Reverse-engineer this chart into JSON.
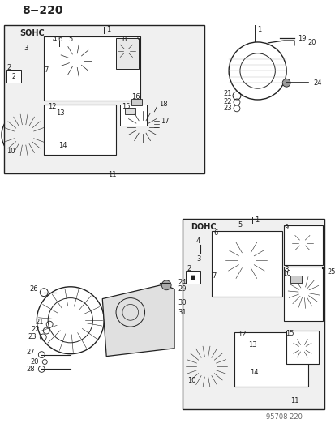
{
  "title": "8−220",
  "watermark": "95708 220",
  "background_color": "#ffffff",
  "line_color": "#222222",
  "text_color": "#222222",
  "sohc_label": "SOHC",
  "dohc_label": "DOHC",
  "figsize": [
    4.14,
    5.33
  ],
  "dpi": 100
}
